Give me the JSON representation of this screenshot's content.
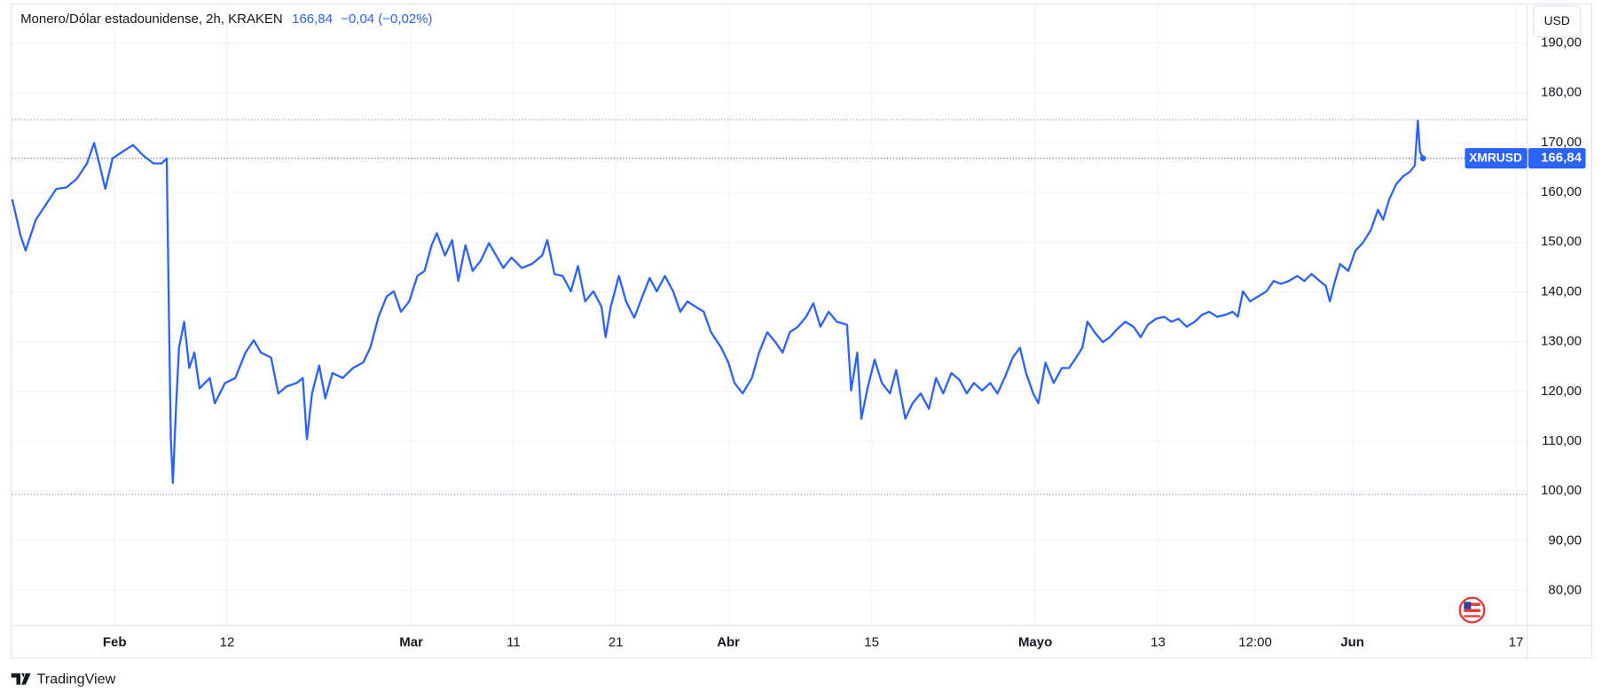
{
  "chart_data": {
    "type": "line",
    "title": "Monero/Dólar estadounidense, 2h, KRAKEN",
    "last_price": {
      "value": 166.84,
      "label": "166,84"
    },
    "change": "−0,04 (−0,02%)",
    "currency": "USD",
    "brand": "TradingView",
    "grid": true,
    "xlim": [
      22,
      170.1
    ],
    "ylim": [
      73,
      197.6
    ],
    "xticks": [
      {
        "value": 32,
        "label": "Feb"
      },
      {
        "value": 43,
        "label": "12"
      },
      {
        "value": 61,
        "label": "Mar"
      },
      {
        "value": 71,
        "label": "11"
      },
      {
        "value": 81,
        "label": "21"
      },
      {
        "value": 92,
        "label": "Abr"
      },
      {
        "value": 106,
        "label": "15"
      },
      {
        "value": 122,
        "label": "Mayo"
      },
      {
        "value": 134,
        "label": "13"
      },
      {
        "value": 143.5,
        "label": "12:00"
      },
      {
        "value": 153,
        "label": "Jun"
      },
      {
        "value": 169,
        "label": "17"
      }
    ],
    "yticks": [
      {
        "value": 80,
        "label": "80,00"
      },
      {
        "value": 90,
        "label": "90,00"
      },
      {
        "value": 100,
        "label": "100,00"
      },
      {
        "value": 110,
        "label": "110,00"
      },
      {
        "value": 120,
        "label": "120,00"
      },
      {
        "value": 130,
        "label": "130,00"
      },
      {
        "value": 140,
        "label": "140,00"
      },
      {
        "value": 150,
        "label": "150,00"
      },
      {
        "value": 160,
        "label": "160,00"
      },
      {
        "value": 170,
        "label": "170,00"
      },
      {
        "value": 180,
        "label": "180,00"
      },
      {
        "value": 190,
        "label": "190,00"
      }
    ],
    "high_low_lines": [
      174.6,
      99.3
    ],
    "x": [
      22,
      22.8,
      23.3,
      24.3,
      25.3,
      26.3,
      27.3,
      28.3,
      29.3,
      30,
      30.5,
      31.1,
      31.8,
      32.8,
      33.8,
      34.8,
      35.8,
      36.6,
      37.1,
      37.3,
      37.5,
      37.7,
      38,
      38.3,
      38.8,
      39.3,
      39.8,
      40.3,
      41.3,
      41.8,
      42.8,
      43.8,
      44.8,
      45.6,
      46.3,
      47.3,
      48,
      48.8,
      49.8,
      50.4,
      50.8,
      51.3,
      52,
      52.6,
      53.3,
      54.3,
      55.3,
      56.3,
      57,
      57.8,
      58.6,
      59.3,
      60,
      60.8,
      61.6,
      62.3,
      63,
      63.5,
      64.3,
      65,
      65.6,
      66.3,
      67,
      67.8,
      68.6,
      69.3,
      70,
      70.8,
      71.8,
      72.8,
      73.8,
      74.3,
      75,
      75.8,
      76.6,
      77.3,
      78,
      78.8,
      79.6,
      80,
      80.5,
      81.3,
      82,
      82.8,
      83.6,
      84.3,
      85,
      85.8,
      86.6,
      87.3,
      88,
      88.8,
      89.6,
      90.3,
      91.3,
      92,
      92.6,
      93.4,
      94.3,
      95,
      95.8,
      96.6,
      97.3,
      98,
      98.8,
      99.6,
      100.3,
      101,
      101.8,
      102.6,
      103.6,
      104,
      104.6,
      105,
      105.6,
      106.3,
      107,
      107.8,
      108.4,
      109.3,
      110,
      110.8,
      111.6,
      112.3,
      113,
      113.8,
      114.6,
      115.3,
      116,
      116.8,
      117.6,
      118.3,
      119,
      119.8,
      120.5,
      121.1,
      121.8,
      122.3,
      123,
      123.8,
      124.6,
      125.3,
      126,
      126.6,
      127.1,
      127.8,
      128.6,
      129.3,
      130,
      130.8,
      131.6,
      132.3,
      133,
      133.8,
      134.6,
      135.3,
      136,
      136.8,
      137.6,
      138.3,
      139,
      139.8,
      140.6,
      141.3,
      141.8,
      142.3,
      143,
      143.8,
      144.6,
      145.3,
      146,
      146.8,
      147.6,
      148.3,
      149,
      149.8,
      150.4,
      150.8,
      151.3,
      151.8,
      152.6,
      153.3,
      154,
      154.8,
      155.5,
      156,
      156.6,
      157.3,
      158,
      158.6,
      159.1,
      159.4,
      159.6,
      159.9
    ],
    "series": [
      {
        "name": "XMRUSD",
        "color": "#2962ff",
        "values": [
          158.6,
          151.4,
          148.3,
          154.5,
          157.6,
          160.7,
          161,
          162.7,
          165.8,
          169.9,
          165.8,
          160.7,
          166.8,
          168.2,
          169.5,
          167.4,
          165.8,
          165.8,
          166.8,
          137,
          110.4,
          101.6,
          116.5,
          128.8,
          134,
          124.7,
          127.8,
          120.6,
          122.7,
          117.6,
          121.7,
          122.7,
          127.8,
          130.3,
          127.8,
          126.8,
          119.6,
          121,
          121.7,
          122.7,
          110.4,
          119.6,
          125.2,
          118.6,
          123.7,
          122.7,
          124.7,
          125.8,
          128.8,
          135,
          139.1,
          140.1,
          136,
          138.1,
          143.2,
          144.2,
          149.4,
          151.8,
          147.3,
          150.4,
          142.2,
          149.4,
          144.2,
          146.3,
          149.8,
          147.3,
          144.8,
          146.9,
          144.8,
          145.6,
          147.3,
          150.4,
          143.6,
          143.2,
          140.1,
          145.2,
          138.1,
          140.1,
          137,
          130.9,
          137,
          143.2,
          138.1,
          134.8,
          139.1,
          142.8,
          140.1,
          143.2,
          140.1,
          136,
          138.1,
          137,
          136,
          131.9,
          128.8,
          125.8,
          121.7,
          119.6,
          122.7,
          127.8,
          131.9,
          129.9,
          127.8,
          131.9,
          133,
          135,
          137.7,
          133,
          136,
          134,
          133.4,
          120.2,
          127.8,
          114.5,
          120.6,
          126.4,
          121.7,
          119.6,
          124.3,
          114.5,
          117.6,
          119.6,
          116.5,
          122.7,
          119.6,
          123.7,
          122.3,
          119.6,
          121.7,
          120.2,
          121.7,
          119.6,
          122.7,
          126.8,
          128.8,
          123.7,
          119.6,
          117.6,
          125.8,
          121.7,
          124.7,
          124.7,
          126.8,
          128.8,
          134,
          131.9,
          129.9,
          130.9,
          132.5,
          134,
          133,
          130.9,
          133.4,
          134.6,
          135,
          134,
          134.6,
          133,
          134,
          135.4,
          136,
          135,
          135.4,
          136,
          135,
          140.1,
          138.1,
          139.1,
          140.1,
          142.2,
          141.6,
          142.2,
          143.2,
          142.2,
          143.6,
          142.2,
          141.2,
          138.1,
          142.2,
          145.6,
          144.2,
          148.3,
          149.8,
          152.4,
          156.5,
          154.5,
          158.6,
          161.7,
          163.3,
          164.1,
          165.4,
          174.4,
          168.2,
          166.84
        ]
      }
    ]
  }
}
